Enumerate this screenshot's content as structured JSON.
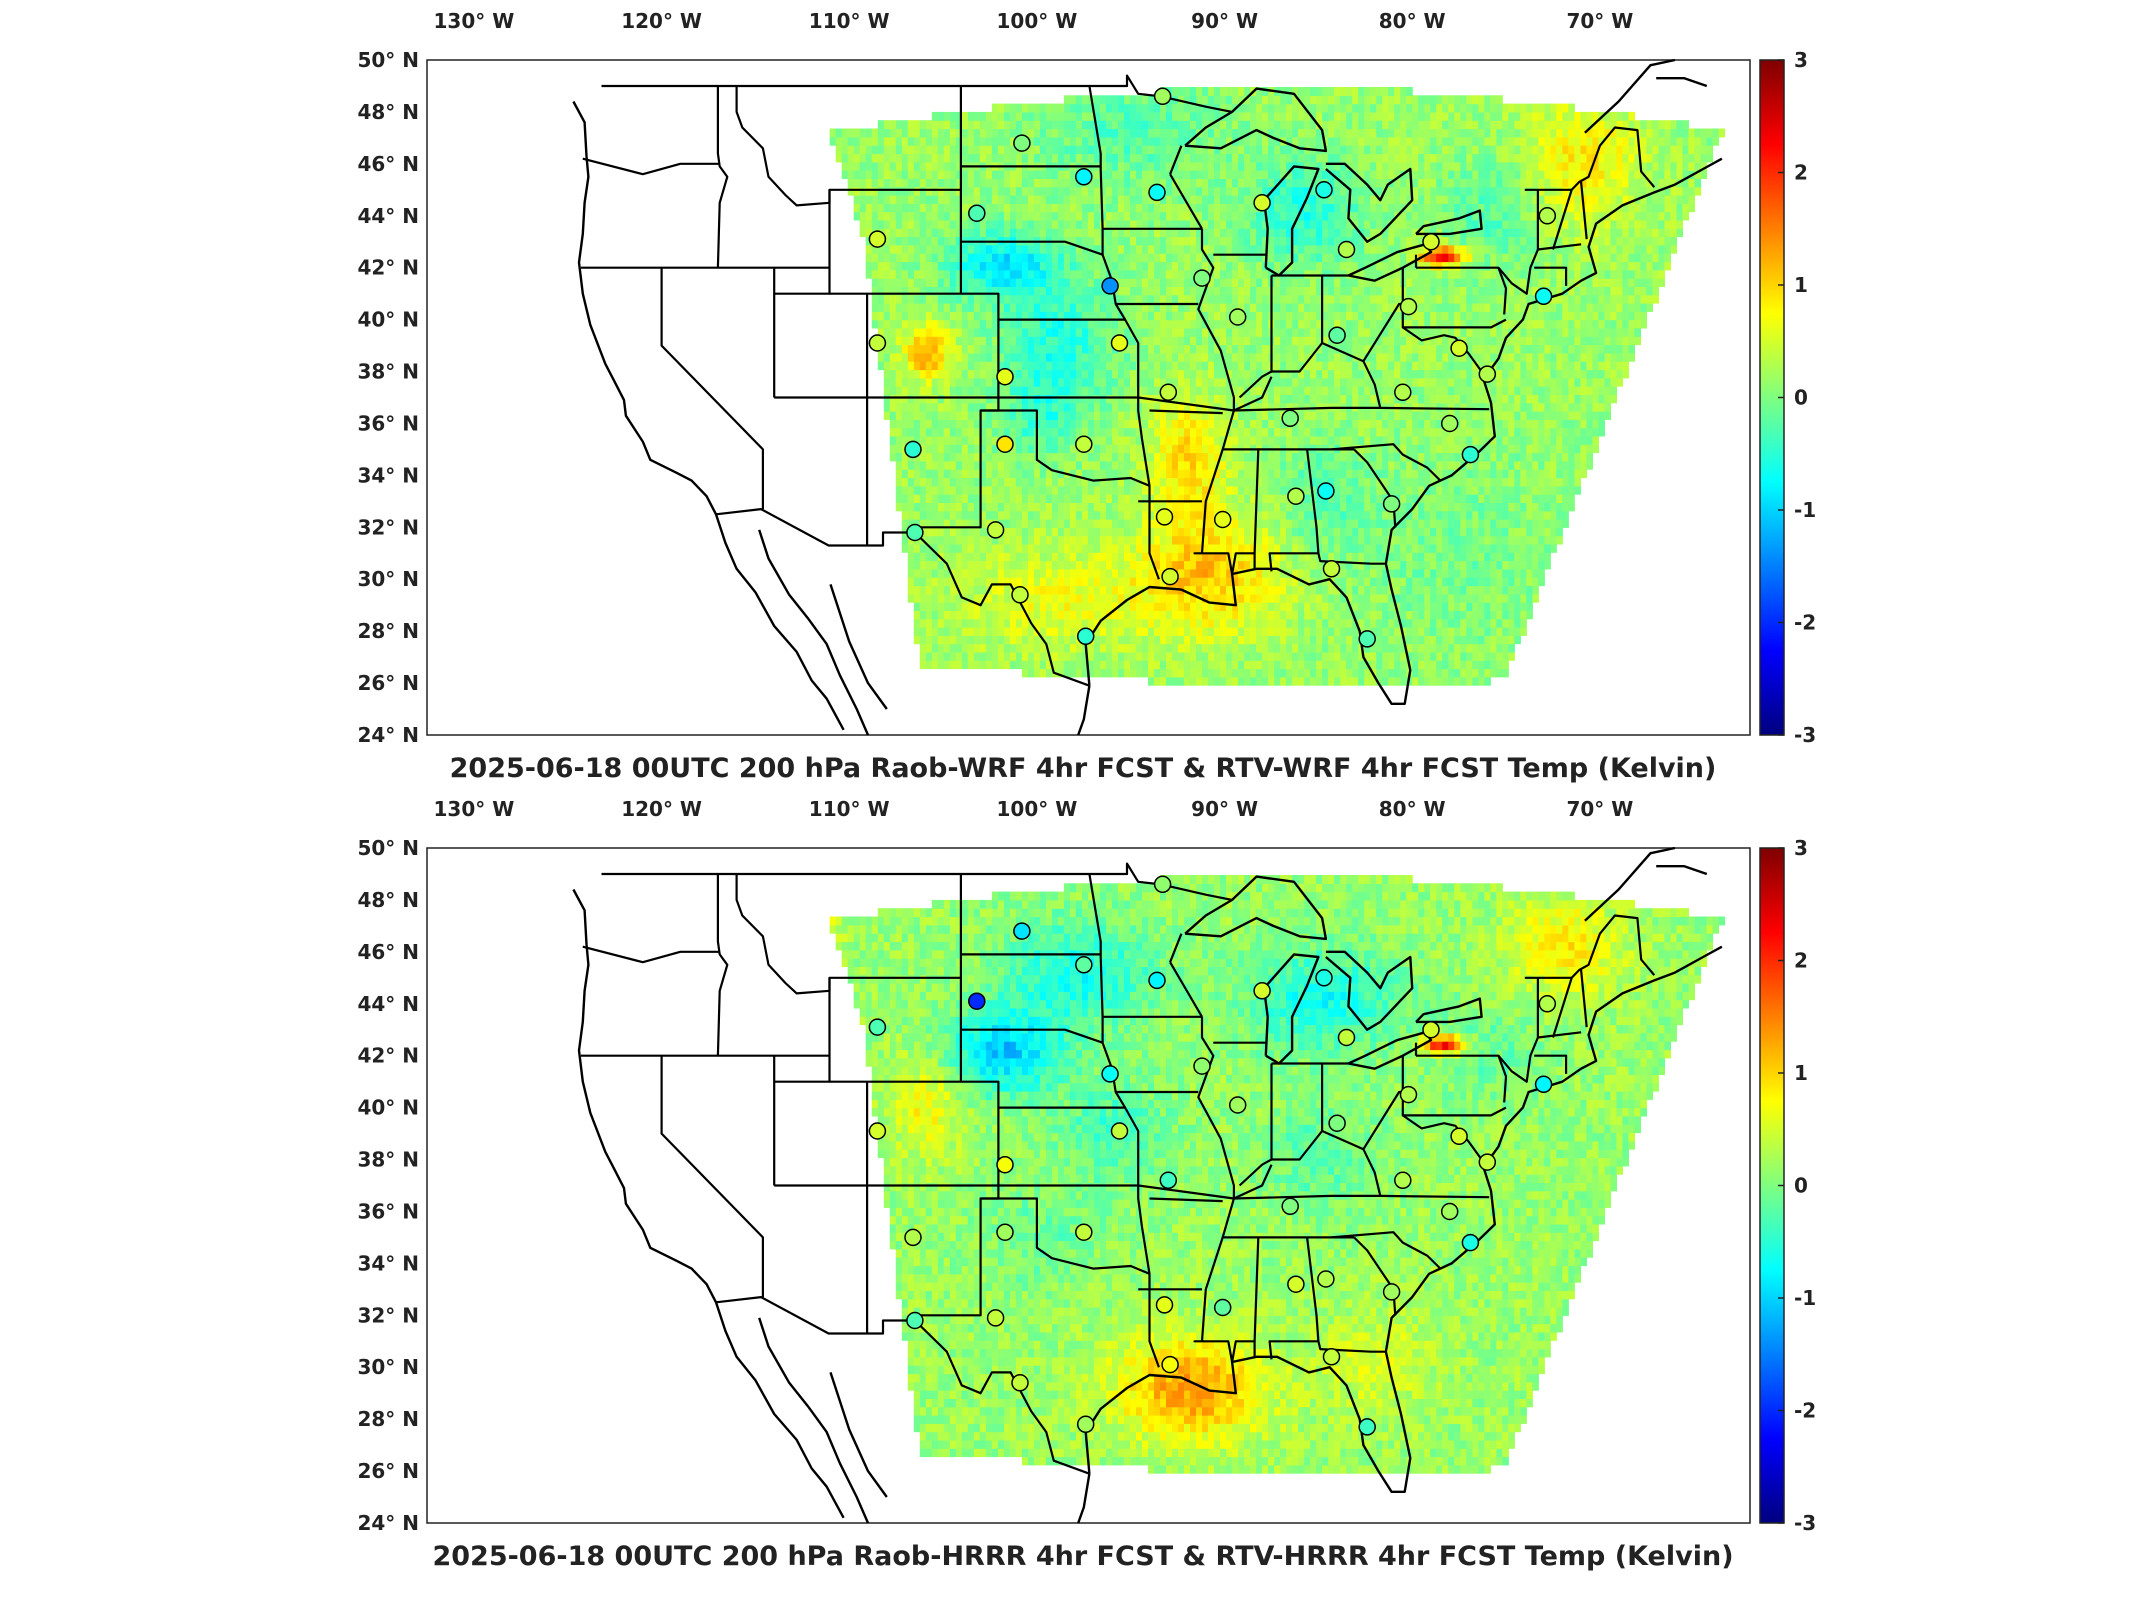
{
  "lon_labels": [
    "130° W",
    "120° W",
    "110° W",
    "100° W",
    "90° W",
    "80° W",
    "70° W"
  ],
  "lat_labels": [
    "50° N",
    "48° N",
    "46° N",
    "44° N",
    "42° N",
    "40° N",
    "38° N",
    "36° N",
    "34° N",
    "32° N",
    "30° N",
    "28° N",
    "26° N",
    "24° N"
  ],
  "colorbar": {
    "ticks": [
      "3",
      "2",
      "1",
      "0",
      "-1",
      "-2",
      "-3"
    ],
    "range": [
      -3,
      3
    ],
    "colormap": [
      "#00007f",
      "#0000ff",
      "#007fff",
      "#00ffff",
      "#7fff7f",
      "#ffff00",
      "#ff7f00",
      "#ff0000",
      "#7f0000"
    ]
  },
  "panels": [
    {
      "id": "top",
      "title": "2025-06-18 00UTC 200 hPa Raob-WRF 4hr FCST & RTV-WRF 4hr FCST Temp (Kelvin)",
      "stations": [
        {
          "lon": -93.3,
          "lat": 48.6,
          "v": 0.2
        },
        {
          "lon": -100.8,
          "lat": 46.8,
          "v": 0.0
        },
        {
          "lon": -97.5,
          "lat": 45.5,
          "v": -0.8
        },
        {
          "lon": -93.6,
          "lat": 44.9,
          "v": -0.7
        },
        {
          "lon": -103.2,
          "lat": 44.1,
          "v": -0.3
        },
        {
          "lon": -108.5,
          "lat": 43.1,
          "v": 0.5
        },
        {
          "lon": -96.1,
          "lat": 41.3,
          "v": -1.4
        },
        {
          "lon": -91.2,
          "lat": 41.6,
          "v": 0.0
        },
        {
          "lon": -88.0,
          "lat": 44.5,
          "v": 0.5
        },
        {
          "lon": -84.7,
          "lat": 45.0,
          "v": -0.6
        },
        {
          "lon": -83.5,
          "lat": 42.7,
          "v": 0.3
        },
        {
          "lon": -79.0,
          "lat": 43.0,
          "v": 0.5
        },
        {
          "lon": -72.8,
          "lat": 44.0,
          "v": 0.3
        },
        {
          "lon": -73.0,
          "lat": 40.9,
          "v": -0.7
        },
        {
          "lon": -80.2,
          "lat": 40.5,
          "v": 0.3
        },
        {
          "lon": -89.3,
          "lat": 40.1,
          "v": 0.2
        },
        {
          "lon": -84.0,
          "lat": 39.4,
          "v": -0.2
        },
        {
          "lon": -77.5,
          "lat": 38.9,
          "v": 0.5
        },
        {
          "lon": -76.0,
          "lat": 37.9,
          "v": 0.3
        },
        {
          "lon": -80.5,
          "lat": 37.2,
          "v": 0.3
        },
        {
          "lon": -86.5,
          "lat": 36.2,
          "v": 0.0
        },
        {
          "lon": -78.0,
          "lat": 36.0,
          "v": 0.2
        },
        {
          "lon": -95.6,
          "lat": 39.1,
          "v": 0.6
        },
        {
          "lon": -101.7,
          "lat": 37.8,
          "v": 0.6
        },
        {
          "lon": -108.5,
          "lat": 39.1,
          "v": 0.4
        },
        {
          "lon": -93.0,
          "lat": 37.2,
          "v": 0.4
        },
        {
          "lon": -97.5,
          "lat": 35.2,
          "v": 0.4
        },
        {
          "lon": -101.7,
          "lat": 35.2,
          "v": 0.9
        },
        {
          "lon": -106.6,
          "lat": 35.0,
          "v": -0.5
        },
        {
          "lon": -106.5,
          "lat": 31.8,
          "v": -0.3
        },
        {
          "lon": -102.2,
          "lat": 31.9,
          "v": 0.4
        },
        {
          "lon": -100.9,
          "lat": 29.4,
          "v": 0.4
        },
        {
          "lon": -97.4,
          "lat": 27.8,
          "v": -0.5
        },
        {
          "lon": -93.2,
          "lat": 32.4,
          "v": 0.6
        },
        {
          "lon": -90.1,
          "lat": 32.3,
          "v": 0.6
        },
        {
          "lon": -86.2,
          "lat": 33.2,
          "v": 0.3
        },
        {
          "lon": -84.6,
          "lat": 33.4,
          "v": -0.7
        },
        {
          "lon": -81.1,
          "lat": 32.9,
          "v": 0.0
        },
        {
          "lon": -84.3,
          "lat": 30.4,
          "v": 0.4
        },
        {
          "lon": -92.9,
          "lat": 30.1,
          "v": 0.5
        },
        {
          "lon": -82.4,
          "lat": 27.7,
          "v": -0.3
        },
        {
          "lon": -76.9,
          "lat": 34.8,
          "v": -0.5
        }
      ]
    },
    {
      "id": "bottom",
      "title": "2025-06-18 00UTC 200 hPa Raob-HRRR 4hr FCST & RTV-HRRR 4hr FCST Temp (Kelvin)",
      "stations": [
        {
          "lon": -93.3,
          "lat": 48.6,
          "v": 0.1
        },
        {
          "lon": -100.8,
          "lat": 46.8,
          "v": -0.9
        },
        {
          "lon": -97.5,
          "lat": 45.5,
          "v": -0.2
        },
        {
          "lon": -93.6,
          "lat": 44.9,
          "v": -0.8
        },
        {
          "lon": -103.2,
          "lat": 44.1,
          "v": -2.0
        },
        {
          "lon": -108.5,
          "lat": 43.1,
          "v": -0.3
        },
        {
          "lon": -96.1,
          "lat": 41.3,
          "v": -0.7
        },
        {
          "lon": -91.2,
          "lat": 41.6,
          "v": 0.1
        },
        {
          "lon": -88.0,
          "lat": 44.5,
          "v": 0.5
        },
        {
          "lon": -84.7,
          "lat": 45.0,
          "v": -0.6
        },
        {
          "lon": -83.5,
          "lat": 42.7,
          "v": 0.4
        },
        {
          "lon": -79.0,
          "lat": 43.0,
          "v": 0.5
        },
        {
          "lon": -72.8,
          "lat": 44.0,
          "v": 0.3
        },
        {
          "lon": -73.0,
          "lat": 40.9,
          "v": -0.8
        },
        {
          "lon": -80.2,
          "lat": 40.5,
          "v": 0.3
        },
        {
          "lon": -89.3,
          "lat": 40.1,
          "v": 0.2
        },
        {
          "lon": -84.0,
          "lat": 39.4,
          "v": 0.0
        },
        {
          "lon": -77.5,
          "lat": 38.9,
          "v": 0.5
        },
        {
          "lon": -76.0,
          "lat": 37.9,
          "v": 0.4
        },
        {
          "lon": -80.5,
          "lat": 37.2,
          "v": 0.3
        },
        {
          "lon": -86.5,
          "lat": 36.2,
          "v": 0.0
        },
        {
          "lon": -78.0,
          "lat": 36.0,
          "v": 0.2
        },
        {
          "lon": -95.6,
          "lat": 39.1,
          "v": 0.4
        },
        {
          "lon": -101.7,
          "lat": 37.8,
          "v": 0.7
        },
        {
          "lon": -108.5,
          "lat": 39.1,
          "v": 0.5
        },
        {
          "lon": -93.0,
          "lat": 37.2,
          "v": -0.4
        },
        {
          "lon": -97.5,
          "lat": 35.2,
          "v": 0.4
        },
        {
          "lon": -101.7,
          "lat": 35.2,
          "v": 0.2
        },
        {
          "lon": -106.6,
          "lat": 35.0,
          "v": 0.3
        },
        {
          "lon": -106.5,
          "lat": 31.8,
          "v": -0.3
        },
        {
          "lon": -102.2,
          "lat": 31.9,
          "v": 0.4
        },
        {
          "lon": -100.9,
          "lat": 29.4,
          "v": 0.4
        },
        {
          "lon": -97.4,
          "lat": 27.8,
          "v": 0.2
        },
        {
          "lon": -93.2,
          "lat": 32.4,
          "v": 0.6
        },
        {
          "lon": -90.1,
          "lat": 32.3,
          "v": -0.2
        },
        {
          "lon": -86.2,
          "lat": 33.2,
          "v": 0.5
        },
        {
          "lon": -84.6,
          "lat": 33.4,
          "v": 0.3
        },
        {
          "lon": -81.1,
          "lat": 32.9,
          "v": 0.2
        },
        {
          "lon": -84.3,
          "lat": 30.4,
          "v": 0.4
        },
        {
          "lon": -92.9,
          "lat": 30.1,
          "v": 0.7
        },
        {
          "lon": -82.4,
          "lat": 27.7,
          "v": -0.4
        },
        {
          "lon": -76.9,
          "lat": 34.8,
          "v": -0.6
        }
      ]
    }
  ]
}
